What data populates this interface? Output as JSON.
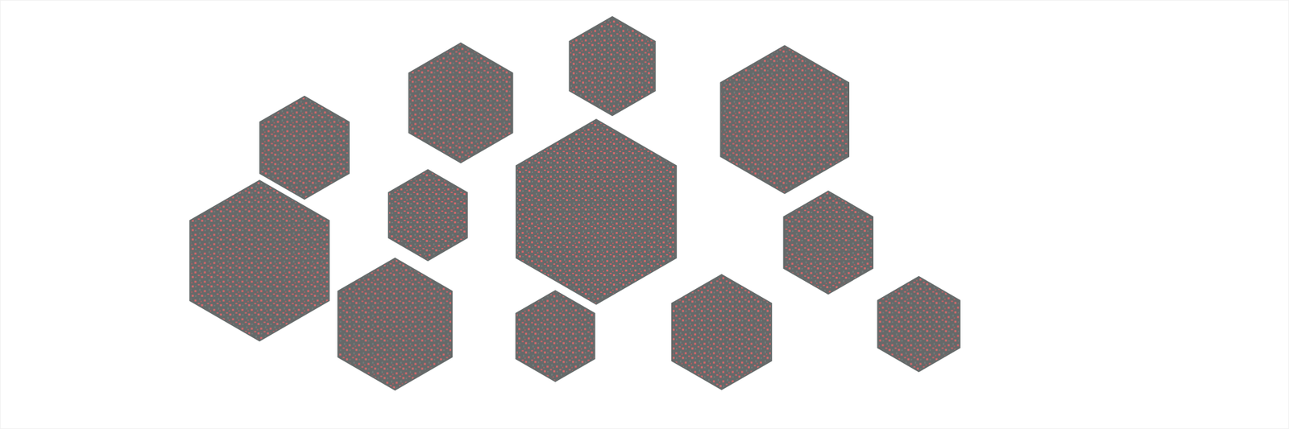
{
  "chart_data": {
    "type": "scatter",
    "marker": "hexagon",
    "color": "#262d2d",
    "x": [
      686,
      912,
      1169,
      453,
      637,
      888,
      1234,
      386,
      588,
      827,
      1075,
      1369
    ],
    "values": [
      487,
      542,
      462,
      420,
      319,
      324,
      278,
      251,
      156,
      138,
      144,
      156
    ],
    "sizes": [
      178,
      147,
      220,
      153,
      135,
      275,
      153,
      239,
      196,
      135,
      171,
      141
    ],
    "xlim": [
      0,
      1920
    ],
    "ylim": [
      0,
      640
    ],
    "xticks": [],
    "yticks": [],
    "grid": false,
    "tick_labels": false
  }
}
